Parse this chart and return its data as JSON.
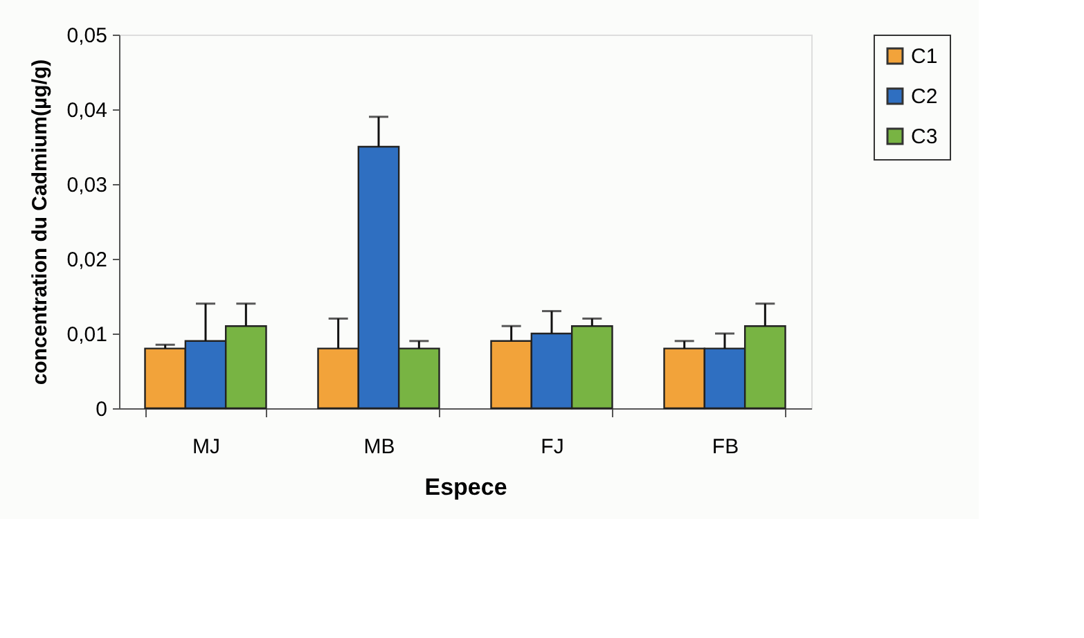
{
  "chart_data": {
    "type": "bar",
    "xlabel": "Espece",
    "ylabel": "concentration du Cadmium(µg/g)",
    "categories": [
      "MJ",
      "MB",
      "FJ",
      "FB"
    ],
    "series": [
      {
        "name": "C1",
        "color": "#f2a33a",
        "values": [
          0.008,
          0.008,
          0.009,
          0.008
        ],
        "errors": [
          [
            0.008,
            0.0085
          ],
          [
            0.008,
            0.012
          ],
          [
            0.009,
            0.011
          ],
          [
            0.008,
            0.009
          ]
        ]
      },
      {
        "name": "C2",
        "color": "#2f6fc1",
        "values": [
          0.009,
          0.035,
          0.01,
          0.008
        ],
        "errors": [
          [
            0.009,
            0.014
          ],
          [
            0.035,
            0.039
          ],
          [
            0.01,
            0.013
          ],
          [
            0.008,
            0.01
          ]
        ]
      },
      {
        "name": "C3",
        "color": "#78b443",
        "values": [
          0.011,
          0.008,
          0.011,
          0.011
        ],
        "errors": [
          [
            0.011,
            0.014
          ],
          [
            0.008,
            0.009
          ],
          [
            0.011,
            0.012
          ],
          [
            0.011,
            0.014
          ]
        ]
      }
    ],
    "ylim": [
      0,
      0.05
    ],
    "yticks": [
      0,
      {
        "value": 0.01,
        "label": "0,01"
      },
      {
        "value": 0.02,
        "label": "0,02"
      },
      {
        "value": 0.03,
        "label": "0,03"
      },
      {
        "value": 0.04,
        "label": "0,04"
      },
      {
        "value": 0.05,
        "label": "0,05"
      }
    ],
    "grid": false,
    "legend": "top right"
  }
}
